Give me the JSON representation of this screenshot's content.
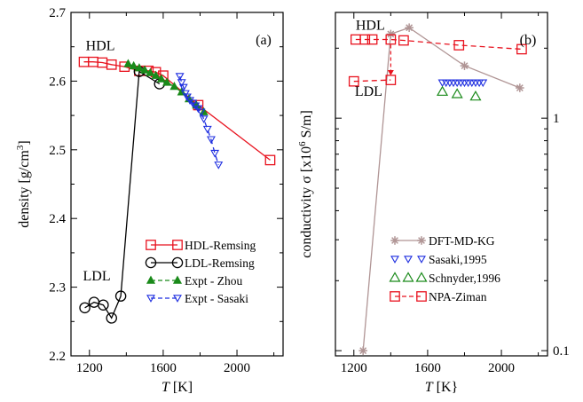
{
  "chart_data": [
    {
      "type": "line",
      "panel_label": "(a)",
      "xlabel": "T [K]",
      "ylabel": "density [g/cm3]",
      "xlim": [
        1100,
        2250
      ],
      "ylim": [
        2.2,
        2.7
      ],
      "xticks": [
        "1200",
        "1600",
        "2000"
      ],
      "xtick_values": [
        1200,
        1600,
        2000
      ],
      "yticks": [
        "2.2",
        "2.3",
        "2.4",
        "2.5",
        "2.6",
        "2.7"
      ],
      "ytick_values": [
        2.2,
        2.3,
        2.4,
        2.5,
        2.6,
        2.7
      ],
      "yscale": "linear",
      "legend_position": "lower-right",
      "annotations": [
        {
          "text": "HDL",
          "x": 1180,
          "y": 2.645
        },
        {
          "text": "LDL",
          "x": 1165,
          "y": 2.31
        }
      ],
      "series": [
        {
          "name": "HDL-Remsing",
          "color": "#e8121e",
          "marker": "square",
          "line": "solid",
          "x": [
            1170,
            1220,
            1270,
            1320,
            1390,
            1470,
            1520,
            1560,
            1600,
            1790,
            2180
          ],
          "y": [
            2.628,
            2.628,
            2.627,
            2.624,
            2.621,
            2.615,
            2.615,
            2.613,
            2.608,
            2.565,
            2.485
          ]
        },
        {
          "name": "LDL-Remsing",
          "color": "#000000",
          "marker": "circle",
          "line": "solid",
          "x": [
            1175,
            1225,
            1275,
            1320,
            1370,
            1470,
            1580
          ],
          "y": [
            2.27,
            2.278,
            2.274,
            2.255,
            2.287,
            2.614,
            2.596
          ]
        },
        {
          "name": "Expt - Zhou",
          "color": "#1a8a1a",
          "marker": "triangle-filled",
          "line": "dashed",
          "x": [
            1410,
            1440,
            1470,
            1500,
            1530,
            1560,
            1590,
            1620,
            1660,
            1700,
            1740,
            1780,
            1820
          ],
          "y": [
            2.625,
            2.622,
            2.619,
            2.616,
            2.612,
            2.608,
            2.603,
            2.598,
            2.592,
            2.584,
            2.574,
            2.565,
            2.555
          ]
        },
        {
          "name": "Expt - Sasaki",
          "color": "#1f2fe0",
          "marker": "triangle-down",
          "line": "dashed",
          "x": [
            1690,
            1700,
            1710,
            1720,
            1730,
            1745,
            1760,
            1775,
            1790,
            1805,
            1820,
            1840,
            1860,
            1880,
            1900
          ],
          "y": [
            2.607,
            2.598,
            2.591,
            2.582,
            2.577,
            2.572,
            2.568,
            2.564,
            2.56,
            2.555,
            2.545,
            2.53,
            2.515,
            2.495,
            2.478
          ]
        }
      ]
    },
    {
      "type": "line",
      "panel_label": "(b)",
      "xlabel": "T [K}",
      "ylabel": "conductivity σ [x10^6 S/m]",
      "xlim": [
        1100,
        2250
      ],
      "ylim": [
        0.095,
        2.85
      ],
      "yscale": "log",
      "xticks": [
        "1200",
        "1600",
        "2000"
      ],
      "xtick_values": [
        1200,
        1600,
        2000
      ],
      "yticks": [
        "1",
        "0.1"
      ],
      "ytick_values": [
        1,
        0.1
      ],
      "legend_position": "lower-right",
      "annotations": [
        {
          "text": "HDL",
          "x": 1210,
          "y": 2.4
        },
        {
          "text": "LDL",
          "x": 1205,
          "y": 1.25
        }
      ],
      "series": [
        {
          "name": "DFT-MD-KG",
          "color": "#b09595",
          "marker": "asterisk",
          "line": "solid",
          "x": [
            1250,
            1400,
            1500,
            1800,
            2100
          ],
          "y": [
            0.1,
            2.3,
            2.45,
            1.68,
            1.35
          ]
        },
        {
          "name": "Sasaki,1995",
          "color": "#1f2fe0",
          "marker": "triangle-down",
          "line": "none",
          "x": [
            1680,
            1700,
            1720,
            1740,
            1760,
            1780,
            1800,
            1820,
            1840,
            1860,
            1880,
            1900
          ],
          "y": [
            1.42,
            1.42,
            1.42,
            1.42,
            1.42,
            1.42,
            1.42,
            1.42,
            1.42,
            1.42,
            1.42,
            1.42
          ]
        },
        {
          "name": "Schnyder,1996",
          "color": "#1a8a1a",
          "marker": "triangle",
          "line": "none",
          "x": [
            1680,
            1760,
            1860
          ],
          "y": [
            1.3,
            1.27,
            1.24
          ]
        },
        {
          "name": "NPA-Ziman",
          "color": "#e8121e",
          "marker": "square",
          "line": "dashed",
          "x": [
            1210,
            1260,
            1300,
            1400,
            1470,
            1770,
            2110
          ],
          "y": [
            2.18,
            2.18,
            2.18,
            2.18,
            2.16,
            2.06,
            1.98
          ]
        },
        {
          "name": "",
          "color": "#e8121e",
          "marker": "square",
          "line": "dashed",
          "x": [
            1200,
            1400
          ],
          "y": [
            1.44,
            1.46
          ]
        }
      ],
      "arrow": {
        "color": "#e8121e",
        "x": 1400,
        "y_from": 2.18,
        "y_to": 1.5
      }
    }
  ]
}
